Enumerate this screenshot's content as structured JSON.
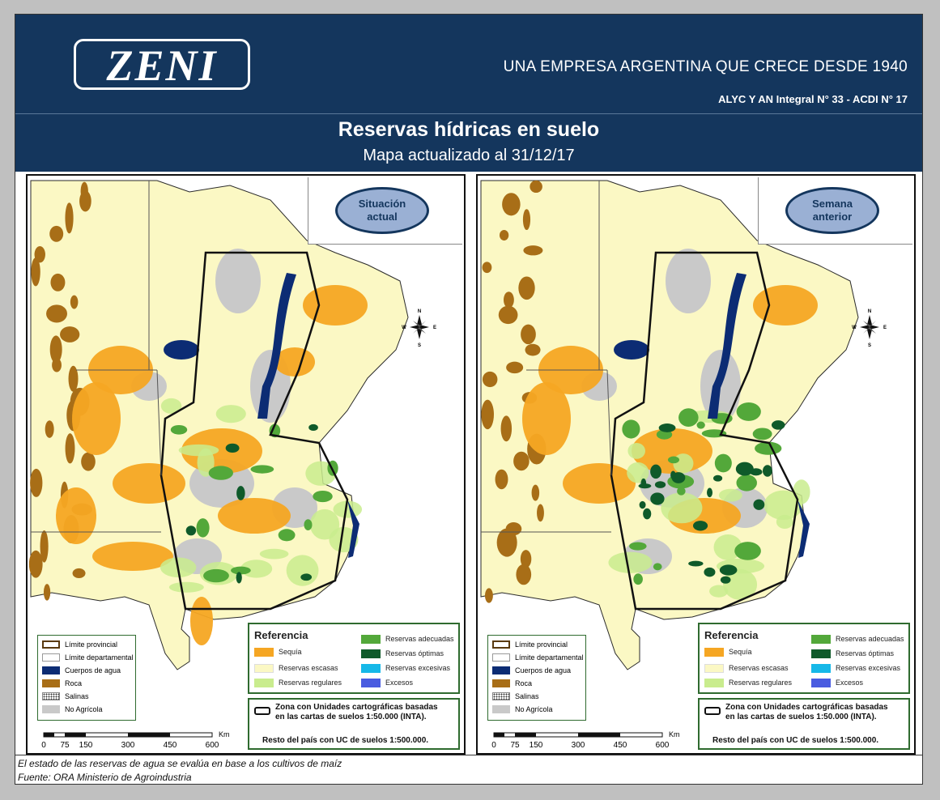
{
  "header": {
    "logo": "ZENI",
    "tagline": "UNA EMPRESA ARGENTINA QUE CRECE DESDE 1940",
    "registration": "ALYC Y AN Integral N° 33 - ACDI N° 17",
    "title": "Reservas hídricas en suelo",
    "subtitle": "Mapa actualizado al 31/12/17"
  },
  "colors": {
    "header_bg": "#14365d",
    "sequia": "#f5a623",
    "escasas": "#fbf8c4",
    "regulares": "#c9ec8e",
    "adecuadas": "#53a83a",
    "optimas": "#0f5a2a",
    "excesivas": "#16b8e8",
    "excesos": "#4a5ce0",
    "agua": "#0c2c74",
    "roca": "#a86e17",
    "no_agricola": "#c9c9c9"
  },
  "panels": [
    {
      "badge": [
        "Situación",
        "actual"
      ],
      "coverage": {
        "sequia": "high",
        "optimas": "low",
        "adecuadas": "moderate"
      }
    },
    {
      "badge": [
        "Semana",
        "anterior"
      ],
      "coverage": {
        "sequia": "moderate",
        "optimas": "high",
        "adecuadas": "high"
      }
    }
  ],
  "compass": {
    "n": "N",
    "s": "S",
    "e": "E",
    "w": "W"
  },
  "legend_small": [
    {
      "label": "Límite provincial",
      "swatch": "provincial"
    },
    {
      "label": "Límite departamental",
      "swatch": "departamental"
    },
    {
      "label": "Cuerpos de agua",
      "swatch": "agua"
    },
    {
      "label": "Roca",
      "swatch": "roca"
    },
    {
      "label": "Salinas",
      "swatch": "salinas"
    },
    {
      "label": "No Agrícola",
      "swatch": "no_agricola"
    }
  ],
  "legend_ref": {
    "title": "Referencia",
    "left": [
      {
        "label": "Sequía",
        "color": "#f5a623"
      },
      {
        "label": "Reservas escasas",
        "color": "#fbf8c4"
      },
      {
        "label": "Reservas regulares",
        "color": "#c9ec8e"
      }
    ],
    "right": [
      {
        "label": "Reservas adecuadas",
        "color": "#53a83a"
      },
      {
        "label": "Reservas óptimas",
        "color": "#0f5a2a"
      },
      {
        "label": "Reservas excesivas",
        "color": "#16b8e8"
      },
      {
        "label": "Excesos",
        "color": "#4a5ce0"
      }
    ]
  },
  "legend_zone": {
    "line1": "Zona con Unidades cartográficas basadas",
    "line2": "en las cartas de suelos 1:50.000 (INTA).",
    "line3": "Resto del país con UC de suelos 1:500.000."
  },
  "scale": {
    "unit": "Km",
    "ticks": [
      "0",
      "75",
      "150",
      "300",
      "450",
      "600"
    ]
  },
  "footer": {
    "note": "El estado de las reservas de agua se evalúa en base a los cultivos de maíz",
    "source": "Fuente: ORA Ministerio de Agroindustria"
  }
}
